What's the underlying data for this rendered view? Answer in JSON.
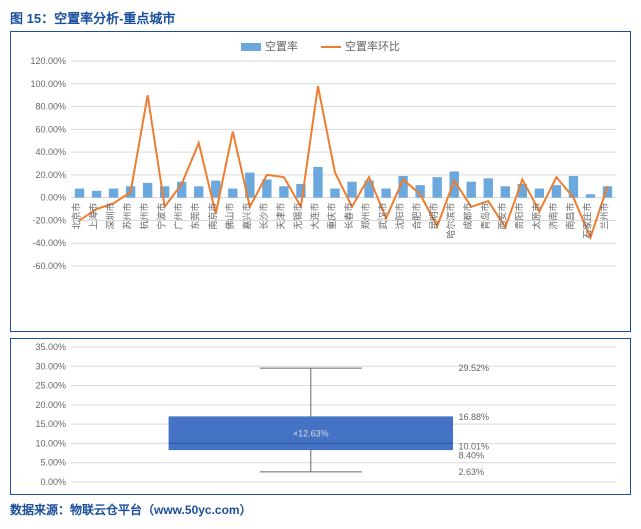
{
  "title": "图 15：空置率分析-重点城市",
  "source": "数据来源：物联云仓平台（www.50yc.com）",
  "combo_chart": {
    "type": "bar+line",
    "legend": {
      "bar": "空置率",
      "line": "空置率环比"
    },
    "ylim": [
      -60,
      120
    ],
    "ytick_step": 20,
    "y_suffix": "%",
    "bar_color": "#6aa8dd",
    "line_color": "#ed7d31",
    "grid_color": "#d9d9d9",
    "background_color": "#ffffff",
    "label_fontsize": 9,
    "categories": [
      "北京市",
      "上海市",
      "深圳市",
      "苏州市",
      "杭州市",
      "宁波市",
      "广州市",
      "东莞市",
      "南京市",
      "佛山市",
      "嘉兴市",
      "长沙市",
      "天津市",
      "无锡市",
      "大连市",
      "重庆市",
      "长春市",
      "郑州市",
      "武汉市",
      "沈阳市",
      "合肥市",
      "昆明市",
      "哈尔滨市",
      "成都市",
      "青岛市",
      "西安市",
      "贵阳市",
      "太原市",
      "济南市",
      "南昌市",
      "石家庄市",
      "兰州市"
    ],
    "bar_values": [
      8,
      6,
      8,
      10,
      13,
      10,
      14,
      10,
      15,
      8,
      22,
      16,
      10,
      12,
      27,
      8,
      14,
      15,
      8,
      19,
      11,
      18,
      23,
      14,
      17,
      10,
      12,
      8,
      11,
      19,
      3,
      10
    ],
    "line_values": [
      -20,
      -10,
      -5,
      5,
      90,
      -8,
      12,
      48,
      -14,
      58,
      -8,
      20,
      18,
      -8,
      98,
      22,
      -8,
      18,
      -18,
      16,
      3,
      -25,
      15,
      -8,
      -3,
      -26,
      16,
      -12,
      18,
      0,
      -35,
      10
    ]
  },
  "box_chart": {
    "type": "boxplot",
    "ylim": [
      0,
      35
    ],
    "ytick_step": 5,
    "y_suffix": "%",
    "box_color": "#4472c4",
    "grid_color": "#d9d9d9",
    "whisker_color": "#666666",
    "label_fontsize": 9,
    "min": 2.63,
    "q1": 8.4,
    "median": 10.01,
    "mean": 12.63,
    "q3": 16.88,
    "max": 29.52
  }
}
